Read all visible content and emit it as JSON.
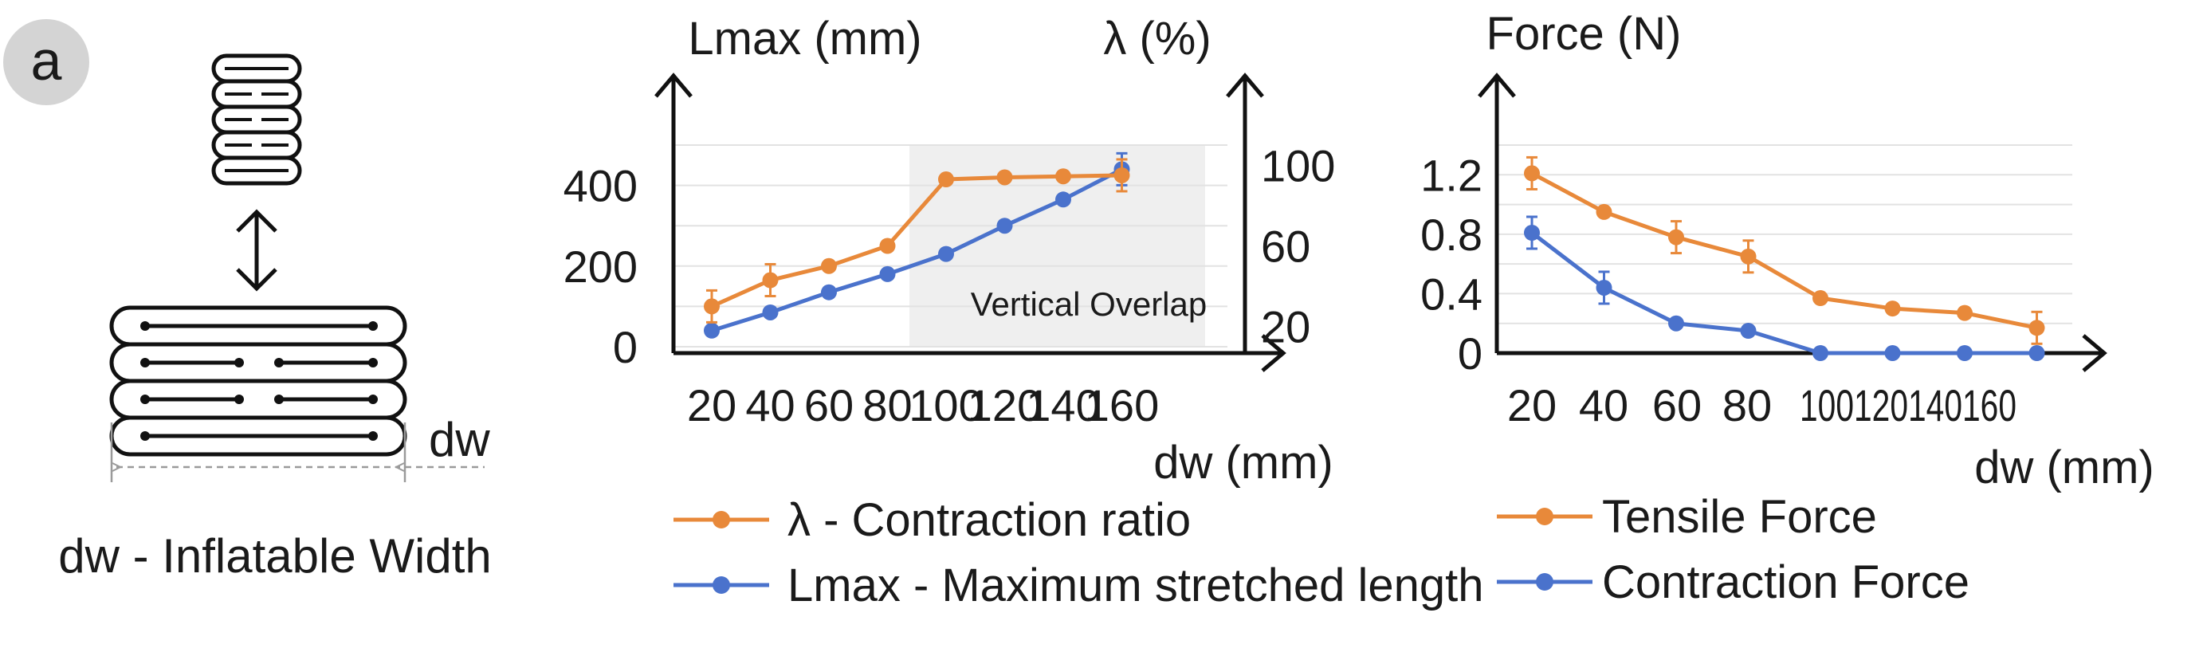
{
  "panel_label": "a",
  "diagram": {
    "width_label": "dw",
    "caption": "dw - Inflatable Width"
  },
  "colors": {
    "orange": "#e8893a",
    "blue": "#4a72cc",
    "grid": "#e2e2e2",
    "shade": "#efefef",
    "axis": "#111111",
    "badge": "#d4d4d4"
  },
  "chart_data": [
    {
      "type": "line",
      "left_axis_title": "Lmax (mm)",
      "right_axis_title": "λ (%)",
      "xlabel": "dw (mm)",
      "categories": [
        "20",
        "40",
        "60",
        "80",
        "100",
        "120",
        "140",
        "160"
      ],
      "left_ticks": [
        "0",
        "200",
        "400"
      ],
      "right_ticks": [
        "20",
        "60",
        "100"
      ],
      "ylim_left": [
        0,
        500
      ],
      "ylim_right": [
        0,
        100
      ],
      "annotation": "Vertical Overlap",
      "shaded_from_index": 4,
      "grid": true,
      "series": [
        {
          "name": "λ - Contraction ratio",
          "axis": "right",
          "color": "#e8893a",
          "values": [
            20,
            33,
            40,
            50,
            83,
            84,
            84.5,
            85
          ]
        },
        {
          "name": "Lmax - Maximum stretched length",
          "axis": "left",
          "color": "#4a72cc",
          "values": [
            40,
            85,
            135,
            180,
            230,
            300,
            365,
            440
          ]
        }
      ]
    },
    {
      "type": "line",
      "ylabel": "Force (N)",
      "xlabel": "dw (mm)",
      "categories": [
        "20",
        "40",
        "60",
        "80",
        "100",
        "120",
        "140",
        "160"
      ],
      "y_ticks": [
        "0",
        "0.4",
        "0.8",
        "1.2"
      ],
      "ylim": [
        0,
        1.4
      ],
      "grid": true,
      "series": [
        {
          "name": "Tensile Force",
          "color": "#e8893a",
          "values": [
            1.21,
            0.95,
            0.78,
            0.65,
            0.37,
            0.3,
            0.27,
            0.17
          ]
        },
        {
          "name": "Contraction Force",
          "color": "#4a72cc",
          "values": [
            0.81,
            0.44,
            0.2,
            0.15,
            0.0,
            0.0,
            0.0,
            0.0
          ]
        }
      ]
    }
  ]
}
